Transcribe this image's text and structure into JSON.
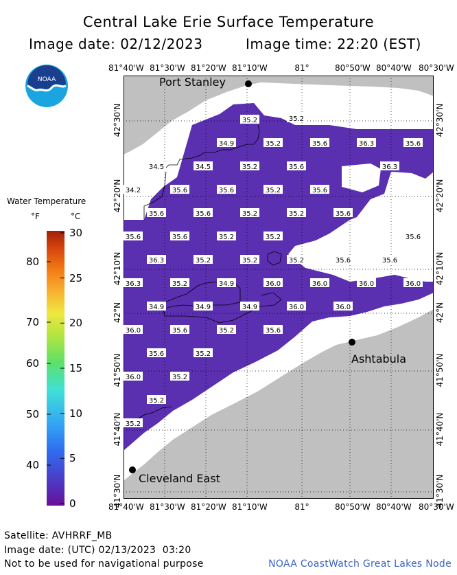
{
  "title": "Central Lake Erie Surface Temperature",
  "image_date_label": "Image date: 02/12/2023",
  "image_time_label": "Image time: 22:20 (EST)",
  "logo_text": "NOAA",
  "lon_ticks": [
    "81°40'W",
    "81°30'W",
    "81°20'W",
    "81°10'W",
    "81°",
    "80°50'W",
    "80°40'W",
    "80°30'W"
  ],
  "lat_ticks": [
    "42°30'N",
    "42°20'N",
    "42°10'N",
    "42°N",
    "41°50'N",
    "41°40'N",
    "41°30'N"
  ],
  "legend": {
    "title": "Water Temperature",
    "unit_f": "°F",
    "unit_c": "°C",
    "fahrenheit": [
      "80",
      "70",
      "60",
      "50",
      "40"
    ],
    "celsius": [
      "30",
      "25",
      "20",
      "15",
      "10",
      "5",
      "0"
    ]
  },
  "cities": [
    {
      "name": "Port Stanley"
    },
    {
      "name": "Ashtabula"
    },
    {
      "name": "Cleveland East"
    }
  ],
  "temperature_labels": [
    "35.2",
    "35.2",
    "34.9",
    "35.2",
    "35.6",
    "36.3",
    "35.6",
    "34.5",
    "34.5",
    "35.2",
    "35.6",
    "36.3",
    "34.2",
    "35.6",
    "35.6",
    "35.2",
    "35.6",
    "35.6",
    "35.6",
    "35.2",
    "35.2",
    "35.6",
    "35.6",
    "35.6",
    "35.2",
    "35.2",
    "35.6",
    "36.3",
    "35.2",
    "35.2",
    "35.2",
    "35.6",
    "35.6",
    "36.3",
    "35.2",
    "34.9",
    "36.0",
    "36.0",
    "36.0",
    "36.0",
    "34.9",
    "34.9",
    "34.9",
    "36.0",
    "36.0",
    "36.0",
    "35.6",
    "35.2",
    "35.6",
    "35.6",
    "35.2",
    "36.0",
    "35.2",
    "35.2",
    "35.2"
  ],
  "footer": {
    "satellite": "Satellite: AVHRRF_MB",
    "utc_date": "Image date: (UTC) 02/13/2023  03:20",
    "disclaimer": "Not to be used for navigational purpose",
    "credit": "NOAA CoastWatch Great Lakes Node"
  },
  "colors": {
    "land": "#c0c0c0",
    "water": "#5a2fb0",
    "no_data": "#ffffff"
  }
}
